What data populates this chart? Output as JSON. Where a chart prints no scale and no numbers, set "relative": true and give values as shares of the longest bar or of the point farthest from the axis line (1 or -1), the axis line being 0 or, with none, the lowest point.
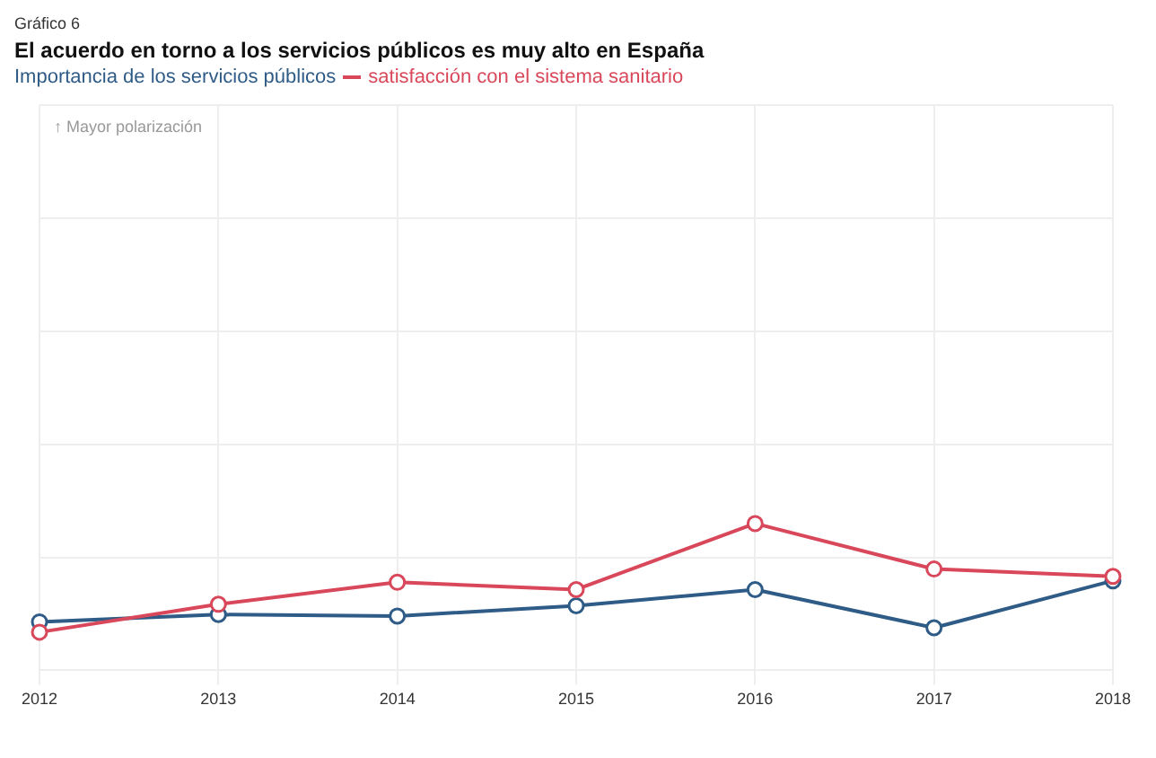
{
  "chart_data": {
    "type": "line",
    "title": "El acuerdo en torno a los servicios públicos es muy alto en España",
    "annotations": [
      "Gráfico 6",
      "↑ Mayor polarización"
    ],
    "categories": [
      "2012",
      "2013",
      "2014",
      "2015",
      "2016",
      "2017",
      "2018"
    ],
    "relative": true,
    "series": [
      {
        "name": "Importancia de los servicios públicos",
        "color": "#2f5b87",
        "values": [
          0.33,
          0.38,
          0.37,
          0.44,
          0.55,
          0.29,
          0.61
        ]
      },
      {
        "name": "satisfacción con el sistema sanitario",
        "color": "#d9475a",
        "values": [
          0.26,
          0.45,
          0.6,
          0.55,
          1,
          0.69,
          0.64
        ]
      }
    ],
    "grid": true,
    "legend": "top left",
    "marker": "circle",
    "line_style": "solid"
  }
}
